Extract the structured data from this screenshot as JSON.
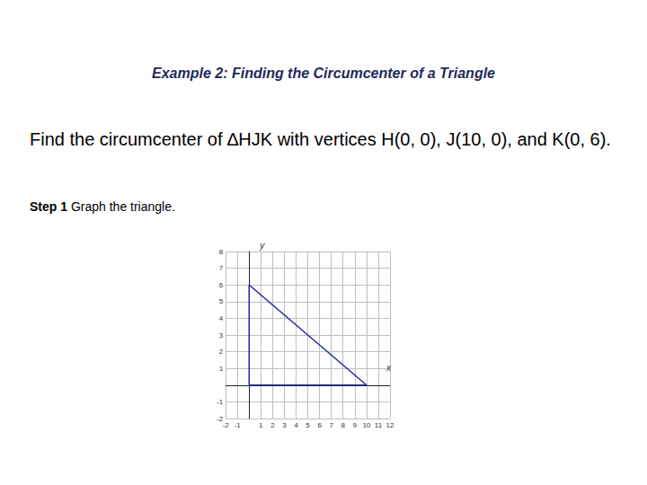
{
  "header": {
    "title": "Example 2: Finding the Circumcenter of a Triangle"
  },
  "problem": "Find the circumcenter of ∆HJK with vertices H(0, 0), J(10, 0), and K(0, 6).",
  "step": {
    "label": "Step 1",
    "text": "Graph the triangle."
  },
  "chart_data": {
    "type": "line",
    "xlabel": "x",
    "ylabel": "y",
    "x": [
      0,
      10,
      0,
      0
    ],
    "values": [
      0,
      0,
      6,
      0
    ],
    "color": "#1f2a9e",
    "xlim": [
      -2,
      12
    ],
    "xticks": [
      -2,
      -1,
      1,
      2,
      3,
      4,
      5,
      6,
      7,
      8,
      9,
      10,
      11,
      12
    ],
    "ylim": [
      -2,
      8
    ],
    "yticks": [
      -2,
      -1,
      1,
      2,
      3,
      4,
      5,
      6,
      7,
      8
    ],
    "grid": true
  }
}
